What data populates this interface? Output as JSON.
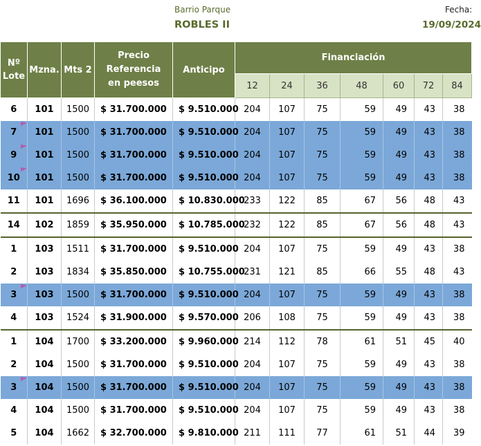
{
  "header": {
    "subtitle": "Barrio Parque",
    "title": "ROBLES II",
    "date_label": "Fecha:",
    "date_value": "19/09/2024"
  },
  "columns": {
    "lote": "Nº Lote",
    "mzna": "Mzna.",
    "mts": "Mts 2",
    "precio": "Precio Referencia en peesos",
    "anticipo": "Anticipo",
    "financiacion": "Financiación",
    "months": [
      "12",
      "24",
      "36",
      "48",
      "60",
      "72",
      "84"
    ]
  },
  "colors": {
    "header_green": "#6e8047",
    "header_light": "#d8e2c4",
    "highlight_blue": "#7ba8d8",
    "title_green": "#5a6b2c"
  },
  "rows": [
    {
      "lote": "6",
      "mzna": "101",
      "mts": "1500",
      "precio": "$ 31.700.000",
      "anticipo": "$ 9.510.000",
      "cuotas": [
        "204",
        "107",
        "75",
        "59",
        "49",
        "43",
        "38"
      ],
      "highlight": false,
      "group_start": false
    },
    {
      "lote": "7",
      "mzna": "101",
      "mts": "1500",
      "precio": "$ 31.700.000",
      "anticipo": "$ 9.510.000",
      "cuotas": [
        "204",
        "107",
        "75",
        "59",
        "49",
        "43",
        "38"
      ],
      "highlight": true,
      "group_start": false
    },
    {
      "lote": "9",
      "mzna": "101",
      "mts": "1500",
      "precio": "$ 31.700.000",
      "anticipo": "$ 9.510.000",
      "cuotas": [
        "204",
        "107",
        "75",
        "59",
        "49",
        "43",
        "38"
      ],
      "highlight": true,
      "group_start": false
    },
    {
      "lote": "10",
      "mzna": "101",
      "mts": "1500",
      "precio": "$ 31.700.000",
      "anticipo": "$ 9.510.000",
      "cuotas": [
        "204",
        "107",
        "75",
        "59",
        "49",
        "43",
        "38"
      ],
      "highlight": true,
      "group_start": false
    },
    {
      "lote": "11",
      "mzna": "101",
      "mts": "1696",
      "precio": "$ 36.100.000",
      "anticipo": "$ 10.830.000",
      "cuotas": [
        "233",
        "122",
        "85",
        "67",
        "56",
        "48",
        "43"
      ],
      "highlight": false,
      "group_start": false
    },
    {
      "lote": "14",
      "mzna": "102",
      "mts": "1859",
      "precio": "$ 35.950.000",
      "anticipo": "$ 10.785.000",
      "cuotas": [
        "232",
        "122",
        "85",
        "67",
        "56",
        "48",
        "43"
      ],
      "highlight": false,
      "group_start": true
    },
    {
      "lote": "1",
      "mzna": "103",
      "mts": "1511",
      "precio": "$ 31.700.000",
      "anticipo": "$ 9.510.000",
      "cuotas": [
        "204",
        "107",
        "75",
        "59",
        "49",
        "43",
        "38"
      ],
      "highlight": false,
      "group_start": true
    },
    {
      "lote": "2",
      "mzna": "103",
      "mts": "1834",
      "precio": "$ 35.850.000",
      "anticipo": "$ 10.755.000",
      "cuotas": [
        "231",
        "121",
        "85",
        "66",
        "55",
        "48",
        "43"
      ],
      "highlight": false,
      "group_start": false
    },
    {
      "lote": "3",
      "mzna": "103",
      "mts": "1500",
      "precio": "$ 31.700.000",
      "anticipo": "$ 9.510.000",
      "cuotas": [
        "204",
        "107",
        "75",
        "59",
        "49",
        "43",
        "38"
      ],
      "highlight": true,
      "group_start": false
    },
    {
      "lote": "4",
      "mzna": "103",
      "mts": "1524",
      "precio": "$ 31.900.000",
      "anticipo": "$ 9.570.000",
      "cuotas": [
        "206",
        "108",
        "75",
        "59",
        "49",
        "43",
        "38"
      ],
      "highlight": false,
      "group_start": false
    },
    {
      "lote": "1",
      "mzna": "104",
      "mts": "1700",
      "precio": "$ 33.200.000",
      "anticipo": "$ 9.960.000",
      "cuotas": [
        "214",
        "112",
        "78",
        "61",
        "51",
        "45",
        "40"
      ],
      "highlight": false,
      "group_start": true
    },
    {
      "lote": "2",
      "mzna": "104",
      "mts": "1500",
      "precio": "$ 31.700.000",
      "anticipo": "$ 9.510.000",
      "cuotas": [
        "204",
        "107",
        "75",
        "59",
        "49",
        "43",
        "38"
      ],
      "highlight": false,
      "group_start": false
    },
    {
      "lote": "3",
      "mzna": "104",
      "mts": "1500",
      "precio": "$ 31.700.000",
      "anticipo": "$ 9.510.000",
      "cuotas": [
        "204",
        "107",
        "75",
        "59",
        "49",
        "43",
        "38"
      ],
      "highlight": true,
      "group_start": false
    },
    {
      "lote": "4",
      "mzna": "104",
      "mts": "1500",
      "precio": "$ 31.700.000",
      "anticipo": "$ 9.510.000",
      "cuotas": [
        "204",
        "107",
        "75",
        "59",
        "49",
        "43",
        "38"
      ],
      "highlight": false,
      "group_start": false
    },
    {
      "lote": "5",
      "mzna": "104",
      "mts": "1662",
      "precio": "$ 32.700.000",
      "anticipo": "$ 9.810.000",
      "cuotas": [
        "211",
        "111",
        "77",
        "61",
        "51",
        "44",
        "39"
      ],
      "highlight": false,
      "group_start": false
    }
  ]
}
